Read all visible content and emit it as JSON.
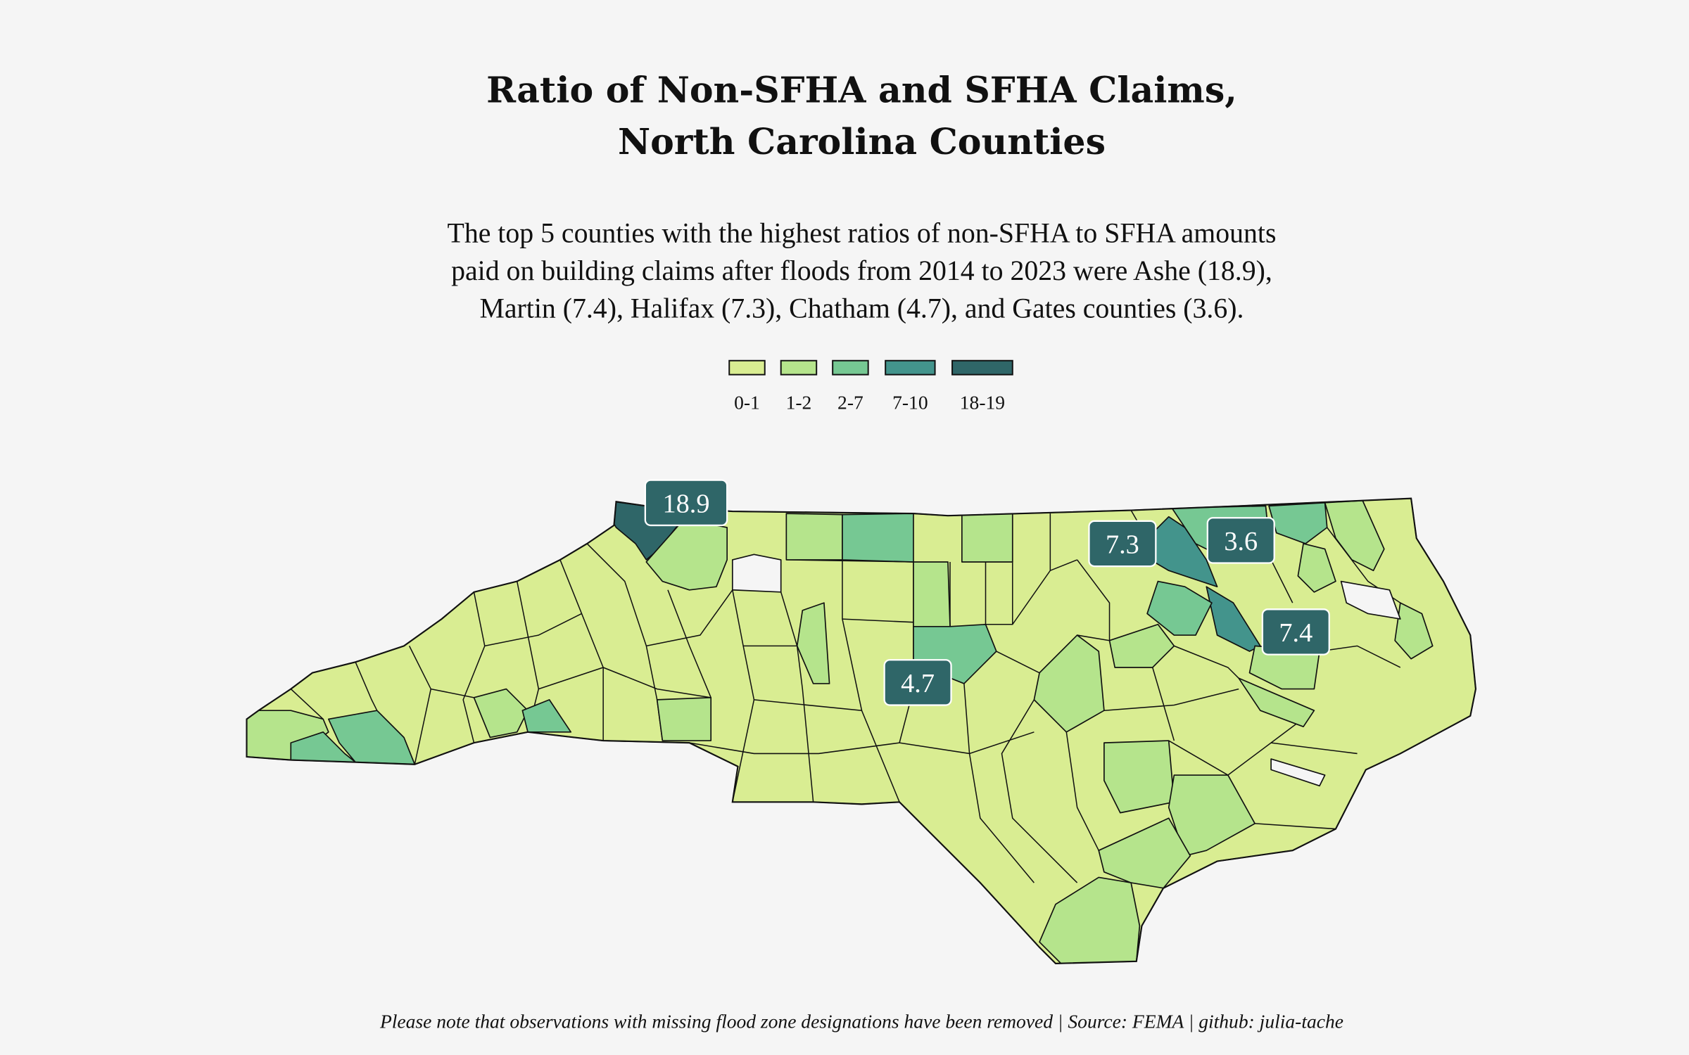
{
  "title": [
    "Ratio of Non-SFHA and SFHA Claims,",
    "North Carolina Counties"
  ],
  "subtitle": [
    "The top 5 counties with the highest ratios of non-SFHA to SFHA amounts",
    "paid on building claims after floods from 2014 to 2023 were Ashe (18.9),",
    "Martin (7.4), Halifax (7.3), Chatham (4.7), and Gates counties (3.6)."
  ],
  "legend": [
    {
      "label": "0-1",
      "color": "#d9ed92"
    },
    {
      "label": "1-2",
      "color": "#b5e48c"
    },
    {
      "label": "2-7",
      "color": "#76c893"
    },
    {
      "label": "7-10",
      "color": "#43948c"
    },
    {
      "label": "18-19",
      "color": "#2f6668"
    }
  ],
  "missing_color": "#f5f5f5",
  "labels": [
    {
      "county": "Ashe",
      "value": "18.9",
      "bin": 4
    },
    {
      "county": "Halifax",
      "value": "7.3",
      "bin": 3
    },
    {
      "county": "Gates",
      "value": "3.6",
      "bin": 2
    },
    {
      "county": "Martin",
      "value": "7.4",
      "bin": 3
    },
    {
      "county": "Chatham",
      "value": "4.7",
      "bin": 2
    }
  ],
  "label_color": "#2f6668",
  "footer": "Please note that observations with missing flood zone designations have been removed | Source: FEMA | github: julia-tache"
}
